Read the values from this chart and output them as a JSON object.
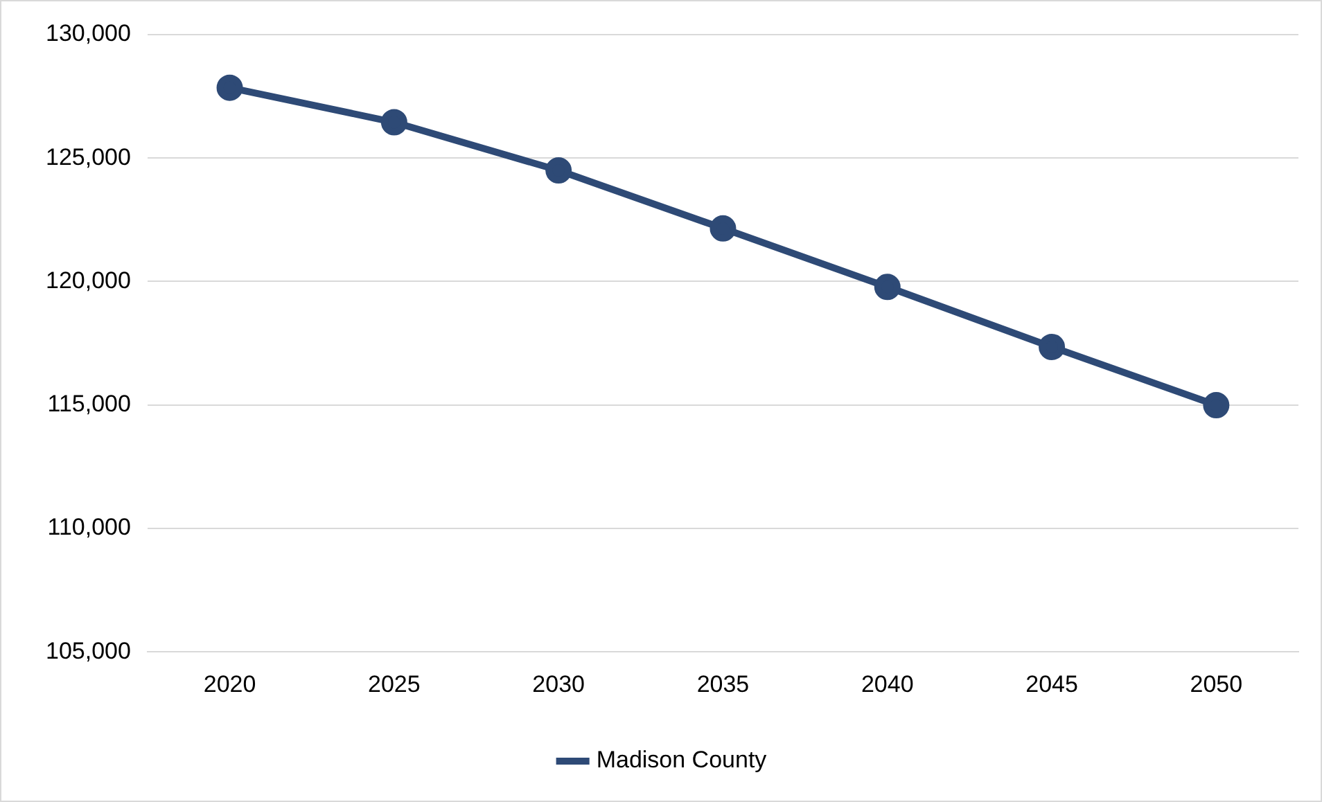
{
  "chart_data": {
    "type": "line",
    "categories": [
      "2020",
      "2025",
      "2030",
      "2035",
      "2040",
      "2045",
      "2050"
    ],
    "series": [
      {
        "name": "Madison County",
        "color": "#2e4a76",
        "values": [
          127850,
          126450,
          124500,
          122150,
          119780,
          117350,
          114990
        ]
      }
    ],
    "ylim": [
      105000,
      130000
    ],
    "yticks": [
      {
        "value": 105000,
        "label": "105,000"
      },
      {
        "value": 110000,
        "label": "110,000"
      },
      {
        "value": 115000,
        "label": "115,000"
      },
      {
        "value": 120000,
        "label": "120,000"
      },
      {
        "value": 125000,
        "label": "125,000"
      },
      {
        "value": 130000,
        "label": "130,000"
      }
    ],
    "grid": "y",
    "legend": "bottom",
    "marker": "circle",
    "line_style": "solid"
  }
}
